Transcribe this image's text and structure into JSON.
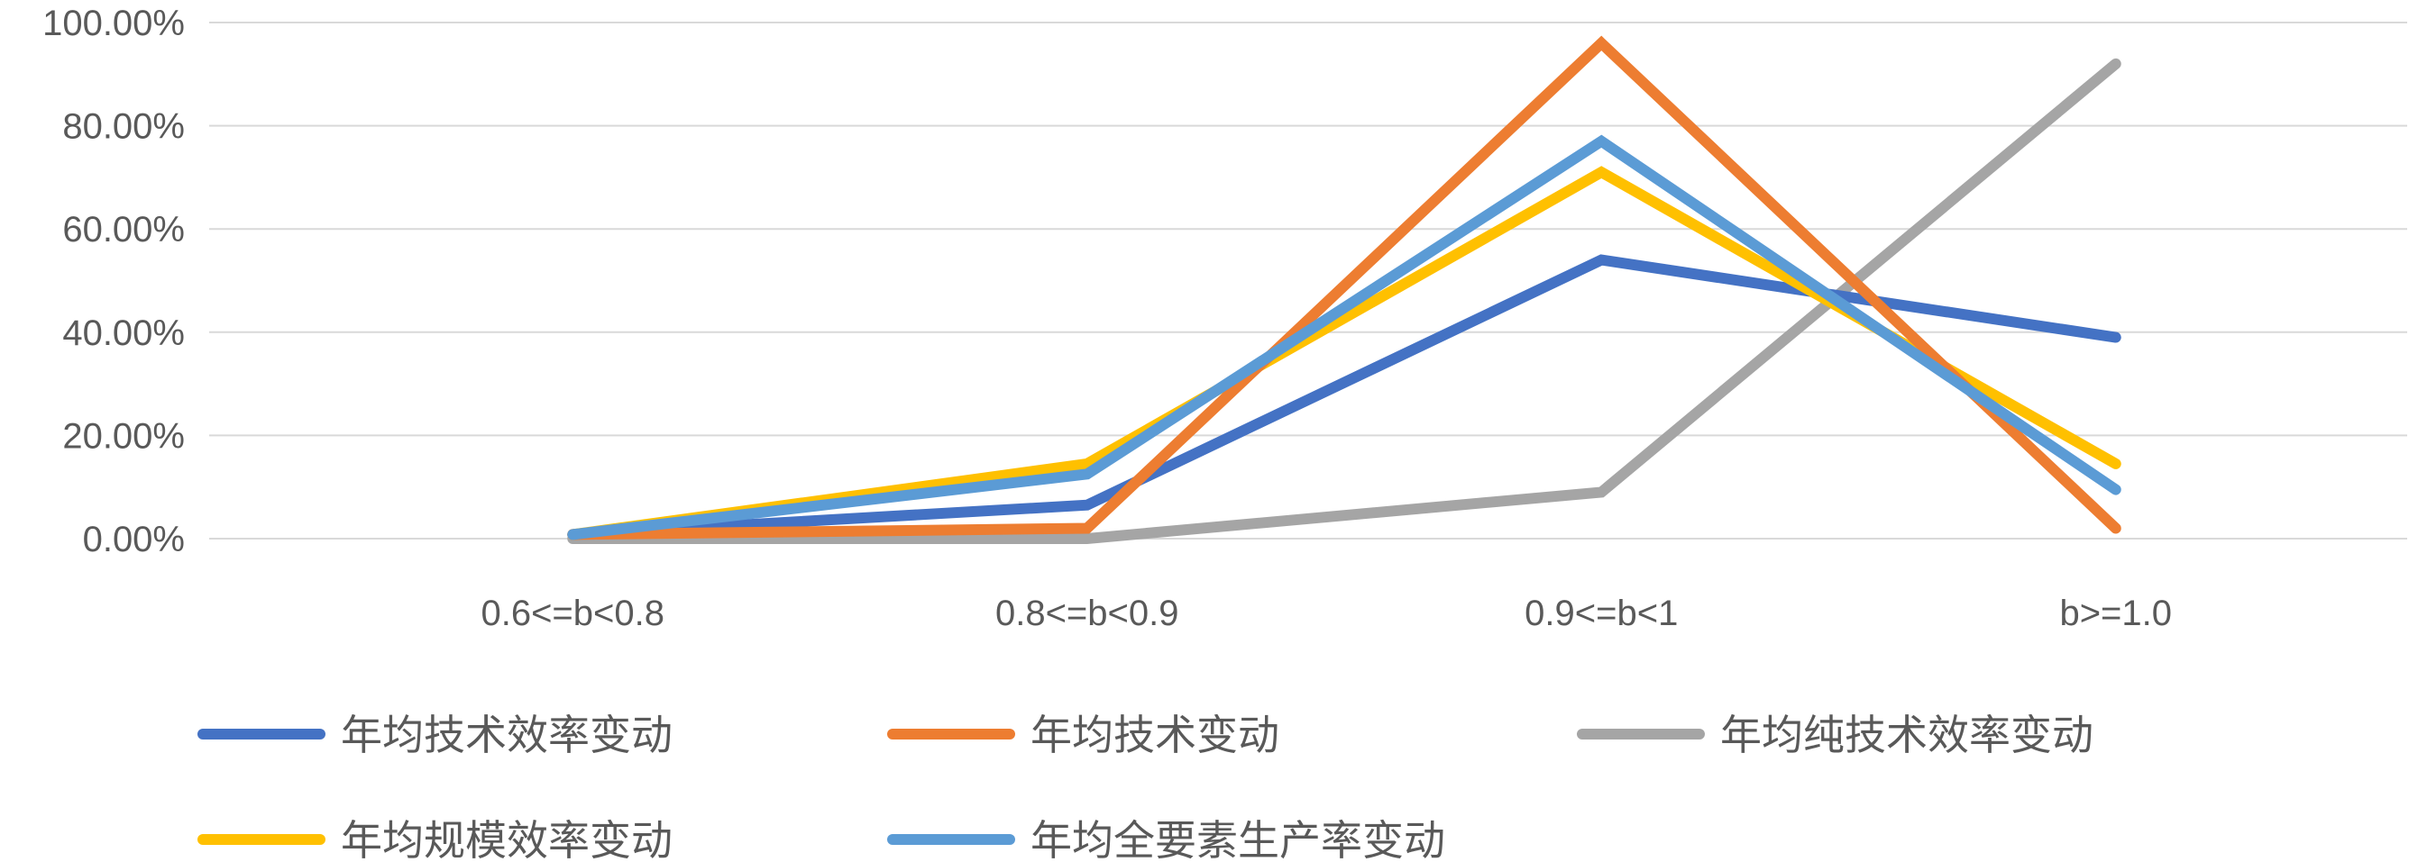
{
  "chart_data": {
    "type": "line",
    "title": "",
    "xlabel": "",
    "ylabel": "",
    "categories": [
      "0.6<=b<0.8",
      "0.8<=b<0.9",
      "0.9<=b<1",
      "b>=1.0"
    ],
    "ylim": [
      0,
      100
    ],
    "y_ticks": [
      0,
      20,
      40,
      60,
      80,
      100
    ],
    "y_tick_labels": [
      "0.00%",
      "20.00%",
      "40.00%",
      "60.00%",
      "80.00%",
      "100.00%"
    ],
    "grid": "horizontal",
    "legend_position": "bottom",
    "series": [
      {
        "name": "年均技术效率变动",
        "color": "#4472C4",
        "values": [
          0.8,
          6.5,
          54.0,
          39.0
        ]
      },
      {
        "name": "年均技术变动",
        "color": "#ED7D31",
        "values": [
          0.8,
          2.0,
          96.0,
          2.0
        ]
      },
      {
        "name": "年均纯技术效率变动",
        "color": "#A5A5A5",
        "values": [
          0.0,
          0.0,
          9.0,
          92.0
        ]
      },
      {
        "name": "年均规模效率变动",
        "color": "#FFC000",
        "values": [
          0.8,
          14.5,
          71.0,
          14.5
        ]
      },
      {
        "name": "年均全要素生产率变动",
        "color": "#5B9BD5",
        "values": [
          0.8,
          12.5,
          77.0,
          9.5
        ]
      }
    ]
  }
}
